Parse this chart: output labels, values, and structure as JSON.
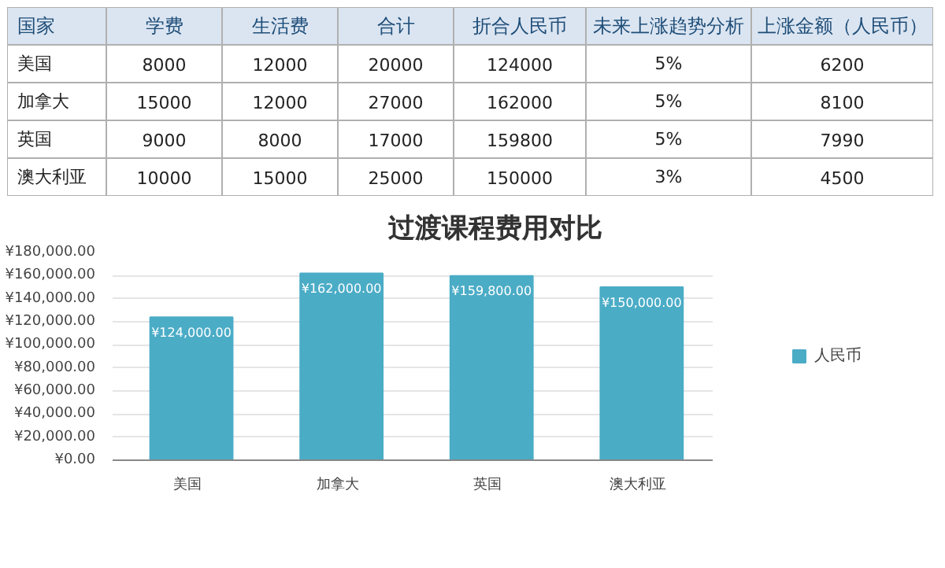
{
  "chart_data": [
    {
      "type": "other",
      "categories": [
        "国家",
        "学费",
        "生活费",
        "合计",
        "折合人民币",
        "未来上涨趋势分析",
        "上涨金额（人民币）"
      ],
      "annotations": [
        "美国",
        "8000",
        "12000",
        "20000",
        "124000",
        "5%",
        "6200",
        "加拿大",
        "15000",
        "12000",
        "27000",
        "162000",
        "5%",
        "8100",
        "英国",
        "9000",
        "8000",
        "17000",
        "159800",
        "5%",
        "7990",
        "澳大利亚",
        "10000",
        "15000",
        "25000",
        "150000",
        "3%",
        "4500"
      ]
    },
    {
      "type": "bar",
      "title": "过渡课程费用对比",
      "categories": [
        "美国",
        "加拿大",
        "英国",
        "澳大利亚"
      ],
      "series": [
        {
          "name": "人民币",
          "color": "#4bacc6",
          "values": [
            124000,
            162000,
            159800,
            150000
          ],
          "value_labels": [
            "¥124,000.00",
            "¥162,000.00",
            "¥159,800.00",
            "¥150,000.00"
          ]
        }
      ],
      "ylim": [
        0,
        180000
      ],
      "yticks": [
        {
          "value": 0,
          "label": "¥0.00"
        },
        {
          "value": 20000,
          "label": "¥20,000.00"
        },
        {
          "value": 40000,
          "label": "¥40,000.00"
        },
        {
          "value": 60000,
          "label": "¥60,000.00"
        },
        {
          "value": 80000,
          "label": "¥80,000.00"
        },
        {
          "value": 100000,
          "label": "¥100,000.00"
        },
        {
          "value": 120000,
          "label": "¥120,000.00"
        },
        {
          "value": 140000,
          "label": "¥140,000.00"
        },
        {
          "value": 160000,
          "label": "¥160,000.00"
        },
        {
          "value": 180000,
          "label": "¥180,000.00"
        }
      ],
      "grid": "y",
      "legend": "right"
    }
  ]
}
